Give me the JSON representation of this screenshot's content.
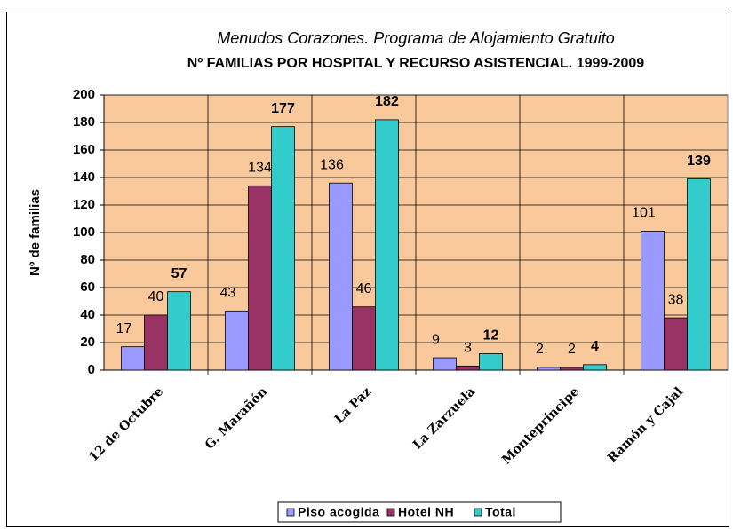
{
  "chart_data": {
    "type": "bar",
    "title": "Menudos Corazones. Programa de Alojamiento Gratuito",
    "subtitle": "Nº FAMILIAS POR HOSPITAL Y  RECURSO ASISTENCIAL. 1999-2009",
    "y_label": "Nº de familias",
    "categories": [
      "12 de Octubre",
      "G. Marañón",
      "La Paz",
      "La Zarzuela",
      "Montepríncipe",
      "Ramón y Cajal"
    ],
    "series": [
      {
        "name": "Piso acogida",
        "color": "#9999ff",
        "values": [
          17,
          43,
          136,
          9,
          2,
          101
        ]
      },
      {
        "name": "Hotel NH",
        "color": "#993366",
        "values": [
          40,
          134,
          46,
          3,
          2,
          38
        ]
      },
      {
        "name": "Total",
        "color": "#33cccc",
        "values": [
          57,
          177,
          182,
          12,
          4,
          139
        ]
      }
    ],
    "ylim": [
      0,
      200
    ],
    "yticks": [
      0,
      20,
      40,
      60,
      80,
      100,
      120,
      140,
      160,
      180,
      200
    ],
    "grid": true,
    "plot_background": "#fac99b",
    "legend": "bottom"
  }
}
